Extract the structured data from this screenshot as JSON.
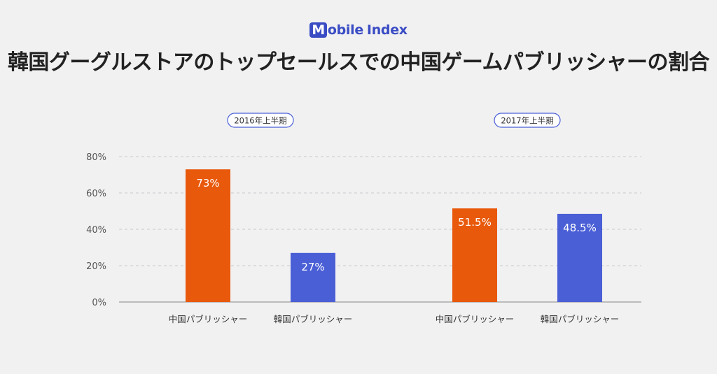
{
  "brand": {
    "m": "M",
    "rest": "obile",
    "index": "Index"
  },
  "title": "韓国グーグルストアのトップセールスでの中国ゲームパブリッシャーの割合",
  "colors": {
    "china": "#e8590c",
    "korea": "#4a5fd6",
    "pill_border": "#4a5fd6",
    "grid": "#c9c9cc",
    "tick_text": "#555555"
  },
  "chart_data": {
    "type": "bar",
    "title": "韓国グーグルストアのトップセールスでの中国ゲームパブリッシャーの割合",
    "ylim": [
      0,
      80
    ],
    "yticks": [
      0,
      20,
      40,
      60,
      80
    ],
    "ytick_labels": [
      "0%",
      "20%",
      "40%",
      "60%",
      "80%"
    ],
    "grid": true,
    "groups": [
      {
        "label": "2016年上半期",
        "bars": [
          {
            "category": "中国パブリッシャー",
            "value": 73,
            "label": "73%",
            "series": "china"
          },
          {
            "category": "韓国パブリッシャー",
            "value": 27,
            "label": "27%",
            "series": "korea"
          }
        ]
      },
      {
        "label": "2017年上半期",
        "bars": [
          {
            "category": "中国パブリッシャー",
            "value": 51.5,
            "label": "51.5%",
            "series": "china"
          },
          {
            "category": "韓国パブリッシャー",
            "value": 48.5,
            "label": "48.5%",
            "series": "korea"
          }
        ]
      }
    ]
  }
}
